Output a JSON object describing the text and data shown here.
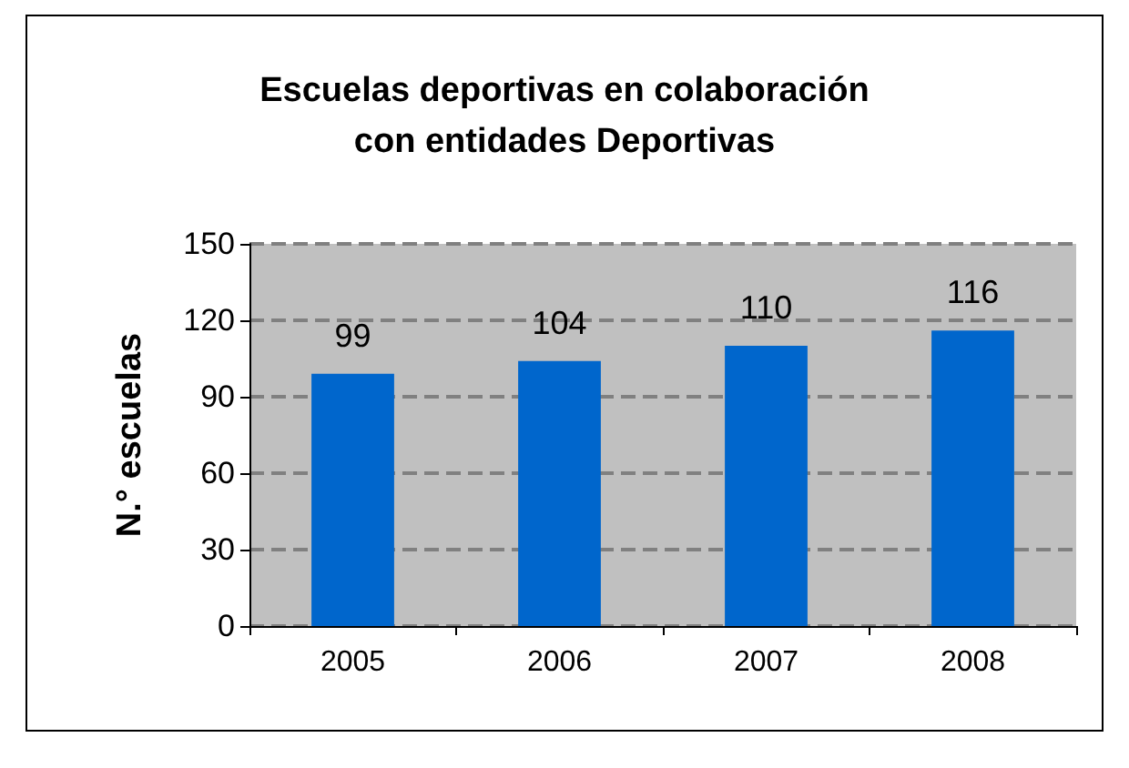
{
  "chart_data": {
    "type": "bar",
    "title": "Escuelas deportivas en colaboración\ncon entidades Deportivas",
    "ylabel": "N.° escuelas",
    "categories": [
      "2005",
      "2006",
      "2007",
      "2008"
    ],
    "values": [
      99,
      104,
      110,
      116
    ],
    "color": "#0066cc",
    "ylim": [
      0,
      150
    ],
    "yticks": [
      0,
      30,
      60,
      90,
      120,
      150
    ],
    "grid": "y",
    "data_labels": true
  }
}
